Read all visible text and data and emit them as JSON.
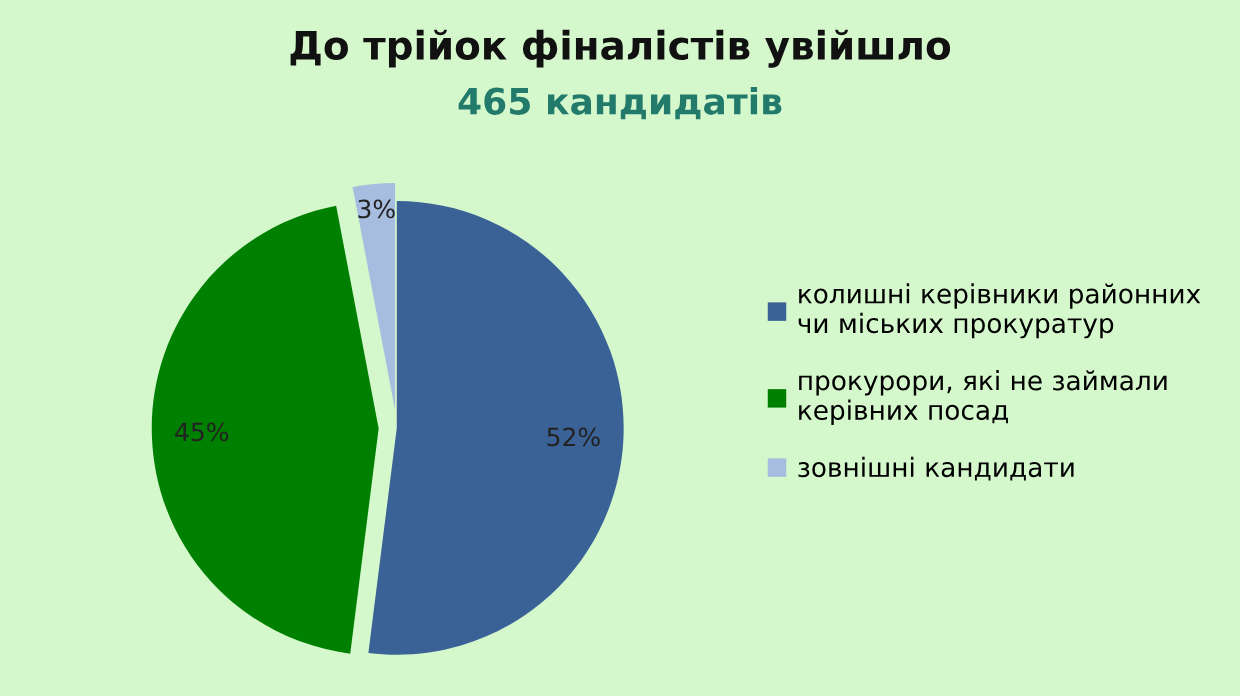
{
  "chart_data": {
    "type": "pie",
    "title": "До трійок фіналістів увійшло",
    "subtitle": "465 кандидатів",
    "categories": [
      "колишні керівники районних\nчи міських прокуратур",
      "прокурори, які не займали\nкерівних посад",
      "зовнішні кандидати"
    ],
    "values": [
      52,
      45,
      3
    ],
    "colors": [
      "#3a6296",
      "#008000",
      "#a6bddf"
    ],
    "value_labels": [
      "52%",
      "45%",
      "3%"
    ],
    "legend": "right"
  }
}
